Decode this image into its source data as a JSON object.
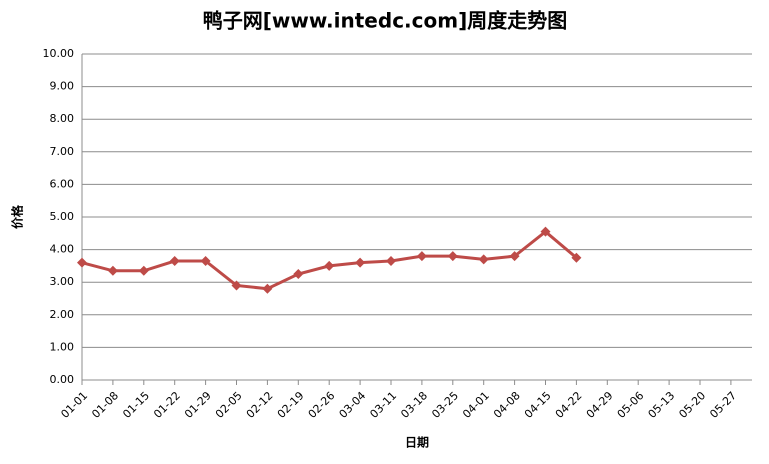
{
  "chart_data": {
    "type": "line",
    "title": "鸭子网[www.intedc.com]周度走势图",
    "x_label": "日期",
    "y_label": "价格",
    "categories": [
      "01-01",
      "01-08",
      "01-15",
      "01-22",
      "01-29",
      "02-05",
      "02-12",
      "02-19",
      "02-26",
      "03-04",
      "03-11",
      "03-18",
      "03-25",
      "04-01",
      "04-08",
      "04-15",
      "04-22",
      "04-29",
      "05-06",
      "05-13",
      "05-20",
      "05-27"
    ],
    "series": [
      {
        "name": "价格",
        "color": "#be4b48",
        "values": [
          3.6,
          3.35,
          3.35,
          3.65,
          3.65,
          2.9,
          2.8,
          3.25,
          3.5,
          3.6,
          3.65,
          3.8,
          3.8,
          3.7,
          3.8,
          4.55,
          3.75,
          null,
          null,
          null,
          null,
          null
        ]
      }
    ],
    "ylim": [
      0,
      10
    ],
    "yticks": [
      {
        "value": 0,
        "label": "0.00"
      },
      {
        "value": 1,
        "label": "1.00"
      },
      {
        "value": 2,
        "label": "2.00"
      },
      {
        "value": 3,
        "label": "3.00"
      },
      {
        "value": 4,
        "label": "4.00"
      },
      {
        "value": 5,
        "label": "5.00"
      },
      {
        "value": 6,
        "label": "6.00"
      },
      {
        "value": 7,
        "label": "7.00"
      },
      {
        "value": 8,
        "label": "8.00"
      },
      {
        "value": 9,
        "label": "9.00"
      },
      {
        "value": 10,
        "label": "10.00"
      }
    ],
    "grid": true
  }
}
